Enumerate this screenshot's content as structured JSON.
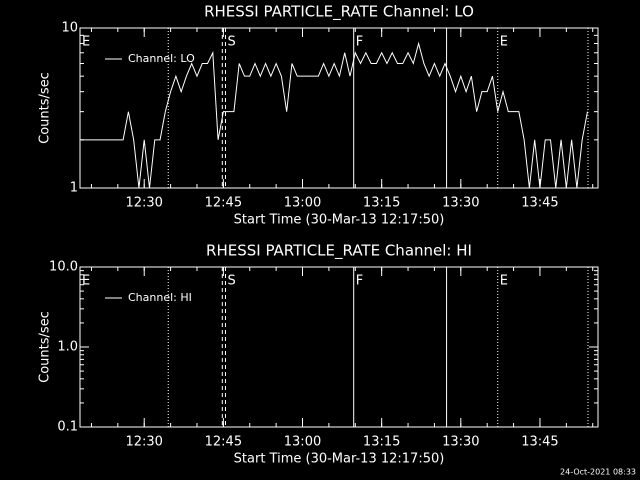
{
  "chart_data": [
    {
      "type": "line",
      "title": "RHESSI PARTICLE_RATE Channel: LO",
      "xlabel": "Start Time (30-Mar-13 12:17:50)",
      "ylabel": "Counts/sec",
      "log_y": true,
      "legend": "upper-left",
      "x": [
        738,
        739,
        740,
        741,
        742,
        743,
        744,
        745,
        746,
        747,
        748,
        749,
        750,
        751,
        752,
        753,
        754,
        755,
        756,
        757,
        758,
        759,
        760,
        761,
        762,
        763,
        764,
        765,
        766,
        767,
        768,
        769,
        770,
        771,
        772,
        773,
        774,
        775,
        776,
        777,
        778,
        779,
        780,
        781,
        782,
        783,
        784,
        785,
        786,
        787,
        788,
        789,
        790,
        791,
        792,
        793,
        794,
        795,
        796,
        797,
        798,
        799,
        800,
        801,
        802,
        803,
        804,
        805,
        806,
        807,
        808,
        809,
        810,
        811,
        812,
        813,
        814,
        815,
        816,
        817,
        818,
        819,
        820,
        821,
        822,
        823,
        824,
        825,
        826,
        827,
        828,
        829,
        830,
        831,
        832,
        833,
        834
      ],
      "series": [
        {
          "name": "Channel: LO",
          "color": "#ffffff",
          "values": [
            2,
            2,
            2,
            2,
            2,
            2,
            2,
            2,
            2,
            3,
            2,
            1,
            2,
            1,
            2,
            2,
            3,
            4,
            5,
            4,
            5,
            6,
            5,
            6,
            6,
            7,
            2,
            3,
            3,
            3,
            6,
            5,
            5,
            6,
            5,
            6,
            5,
            6,
            5,
            3,
            6,
            5,
            5,
            5,
            5,
            5,
            6,
            5,
            6,
            5,
            7,
            5,
            7,
            6,
            7,
            6,
            6,
            7,
            6,
            7,
            6,
            6,
            7,
            6,
            8,
            6,
            5,
            6,
            5,
            6,
            5,
            4,
            5,
            4,
            5,
            3,
            4,
            4,
            5,
            3,
            4,
            3,
            3,
            3,
            2,
            1,
            2,
            1,
            2,
            2,
            1,
            2,
            1,
            2,
            1,
            2,
            3
          ]
        }
      ],
      "xlim": [
        737.83,
        836
      ],
      "ylim": [
        1,
        10
      ],
      "xticks": [
        {
          "value": 750,
          "label": "12:30"
        },
        {
          "value": 765,
          "label": "12:45"
        },
        {
          "value": 780,
          "label": "13:00"
        },
        {
          "value": 795,
          "label": "13:15"
        },
        {
          "value": 810,
          "label": "13:30"
        },
        {
          "value": 825,
          "label": "13:45"
        }
      ],
      "yticks": [
        1,
        10
      ],
      "event_lines": [
        {
          "x": 754.55,
          "style": "dotted"
        },
        {
          "x": 764.8,
          "style": "dashed"
        },
        {
          "x": 765.4,
          "style": "dashed"
        },
        {
          "x": 789.7,
          "style": "solid"
        },
        {
          "x": 807.3,
          "style": "solid"
        },
        {
          "x": 817,
          "style": "dotted"
        },
        {
          "x": 834.1,
          "style": "dotted"
        }
      ],
      "flags": [
        {
          "x": 737.83,
          "label": "E"
        },
        {
          "x": 765.4,
          "label": "S"
        },
        {
          "x": 789.7,
          "label": "F"
        },
        {
          "x": 817,
          "label": "E"
        }
      ]
    },
    {
      "type": "line",
      "title": "RHESSI PARTICLE_RATE Channel: HI",
      "xlabel": "Start Time (30-Mar-13 12:17:50)",
      "ylabel": "Counts/sec",
      "log_y": true,
      "legend": "upper-left",
      "series": [
        {
          "name": "Channel: HI",
          "color": "#ffffff"
        }
      ],
      "xlim": [
        737.83,
        836
      ],
      "ylim": [
        0.1,
        10
      ],
      "xticks": [
        {
          "value": 750,
          "label": "12:30"
        },
        {
          "value": 765,
          "label": "12:45"
        },
        {
          "value": 780,
          "label": "13:00"
        },
        {
          "value": 795,
          "label": "13:15"
        },
        {
          "value": 810,
          "label": "13:30"
        },
        {
          "value": 825,
          "label": "13:45"
        }
      ],
      "yticks": [
        0.1,
        {
          "value": 1,
          "label": "1.0"
        },
        {
          "value": 10,
          "label": "10.0"
        }
      ],
      "event_lines": [
        {
          "x": 754.55,
          "style": "dotted"
        },
        {
          "x": 764.8,
          "style": "dashed"
        },
        {
          "x": 765.4,
          "style": "dashed"
        },
        {
          "x": 789.7,
          "style": "solid"
        },
        {
          "x": 807.3,
          "style": "solid"
        },
        {
          "x": 817,
          "style": "dotted"
        },
        {
          "x": 834.1,
          "style": "dotted"
        }
      ],
      "flags": [
        {
          "x": 737.83,
          "label": "E"
        },
        {
          "x": 765.4,
          "label": "S"
        },
        {
          "x": 789.7,
          "label": "F"
        },
        {
          "x": 817,
          "label": "E"
        }
      ]
    }
  ],
  "footer": "24-Oct-2021 08:33"
}
